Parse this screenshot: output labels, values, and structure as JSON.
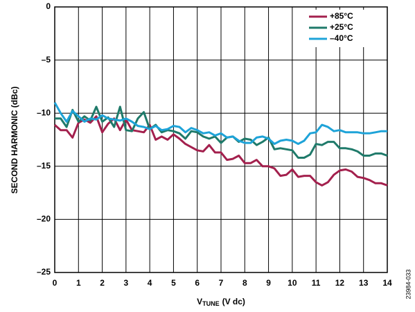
{
  "chart_data": {
    "type": "line",
    "ylabel": "SECOND HARMONIC (dBc)",
    "xlabel": {
      "main": "V",
      "sub": "TUNE",
      "unit": "(V dc)"
    },
    "side_note": "23984-033",
    "xlim": [
      0,
      14
    ],
    "xticks": [
      0,
      1,
      2,
      3,
      4,
      5,
      6,
      7,
      8,
      9,
      10,
      11,
      12,
      13,
      14
    ],
    "ylim": [
      -25,
      0
    ],
    "yticks": [
      {
        "value": -25,
        "label": "–25"
      },
      {
        "value": -20,
        "label": "–20"
      },
      {
        "value": -15,
        "label": "–15"
      },
      {
        "value": -10,
        "label": "–10"
      },
      {
        "value": -5,
        "label": "–5"
      },
      0
    ],
    "grid": true,
    "legend": "upper right",
    "x": [
      0,
      0.25,
      0.5,
      0.75,
      1,
      1.25,
      1.5,
      1.75,
      2,
      2.25,
      2.5,
      2.75,
      3,
      3.25,
      3.5,
      3.75,
      4,
      4.25,
      4.5,
      4.75,
      5,
      5.25,
      5.5,
      5.75,
      6,
      6.25,
      6.5,
      6.75,
      7,
      7.25,
      7.5,
      7.75,
      8,
      8.25,
      8.5,
      8.75,
      9,
      9.25,
      9.5,
      9.75,
      10,
      10.25,
      10.5,
      10.75,
      11,
      11.25,
      11.5,
      11.75,
      12,
      12.25,
      12.5,
      12.75,
      13,
      13.25,
      13.5,
      13.75,
      14
    ],
    "series": [
      {
        "name": "+85°C",
        "color": "#a3204d",
        "values": [
          -11.1,
          -11.6,
          -11.6,
          -12.3,
          -10.9,
          -10.6,
          -10.9,
          -10.3,
          -11.8,
          -11,
          -10.5,
          -11.6,
          -10.6,
          -11.6,
          -11.7,
          -11.8,
          -11.1,
          -12.5,
          -12.2,
          -12.5,
          -12,
          -12.4,
          -12.9,
          -13.2,
          -13.5,
          -13.6,
          -13,
          -13.7,
          -13.7,
          -14.4,
          -14.3,
          -14,
          -14.7,
          -14.7,
          -14.4,
          -15,
          -15,
          -15.2,
          -15.9,
          -15.8,
          -15.3,
          -16,
          -15.9,
          -15.9,
          -16.5,
          -16.8,
          -16.5,
          -15.8,
          -15.4,
          -15.3,
          -15.5,
          -16,
          -16.1,
          -16.3,
          -16.6,
          -16.6,
          -16.8
        ]
      },
      {
        "name": "+25°C",
        "color": "#1f7a6a",
        "values": [
          -10.5,
          -10.5,
          -11.3,
          -9.7,
          -10.8,
          -10.3,
          -10.7,
          -9.4,
          -10.8,
          -10.4,
          -11.3,
          -9.4,
          -11.6,
          -11.7,
          -10.5,
          -9.9,
          -11.5,
          -11.1,
          -11.8,
          -11.6,
          -11.7,
          -11.9,
          -12.4,
          -11.7,
          -11.8,
          -12.2,
          -12.4,
          -12.2,
          -12.8,
          -12.3,
          -12.2,
          -12.7,
          -12.4,
          -12.5,
          -13,
          -12.7,
          -12.3,
          -13.4,
          -13.3,
          -13.4,
          -13.5,
          -14.2,
          -14.2,
          -13.9,
          -12.9,
          -13,
          -12.7,
          -12.7,
          -13.3,
          -13.3,
          -13.4,
          -13.6,
          -14,
          -14,
          -13.8,
          -13.8,
          -14
        ]
      },
      {
        "name": "–40°C",
        "color": "#1ea3d8",
        "values": [
          -9,
          -10,
          -10.8,
          -9.8,
          -10.3,
          -10.8,
          -10.5,
          -10.6,
          -10.2,
          -10.5,
          -10.6,
          -10.7,
          -10.5,
          -10.8,
          -11.2,
          -11.3,
          -11.5,
          -11.2,
          -11.6,
          -11.5,
          -11.2,
          -11.3,
          -11.8,
          -11.4,
          -11.6,
          -11.9,
          -11.8,
          -12.1,
          -11.9,
          -12.3,
          -12.2,
          -12.6,
          -12.8,
          -12.8,
          -12.3,
          -12.2,
          -12.4,
          -12.9,
          -12.6,
          -12.5,
          -12.6,
          -12.9,
          -12.6,
          -11.9,
          -11.8,
          -11.1,
          -11.3,
          -11.7,
          -11.6,
          -11.8,
          -11.8,
          -11.8,
          -11.9,
          -11.9,
          -11.8,
          -11.7,
          -11.7
        ]
      }
    ]
  }
}
